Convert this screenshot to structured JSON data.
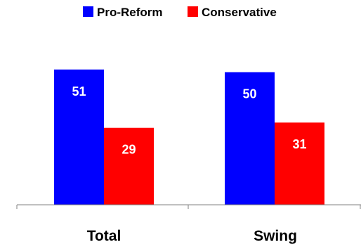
{
  "chart_data": {
    "type": "bar",
    "categories": [
      "Total",
      "Swing"
    ],
    "series": [
      {
        "name": "Pro-Reform",
        "values": [
          51,
          50
        ],
        "color": "#0000ff"
      },
      {
        "name": "Conservative",
        "values": [
          29,
          31
        ],
        "color": "#ff0000"
      }
    ],
    "ylim": [
      0,
      65
    ],
    "legend_position": "top-center",
    "grid": false,
    "data_labels": true
  }
}
